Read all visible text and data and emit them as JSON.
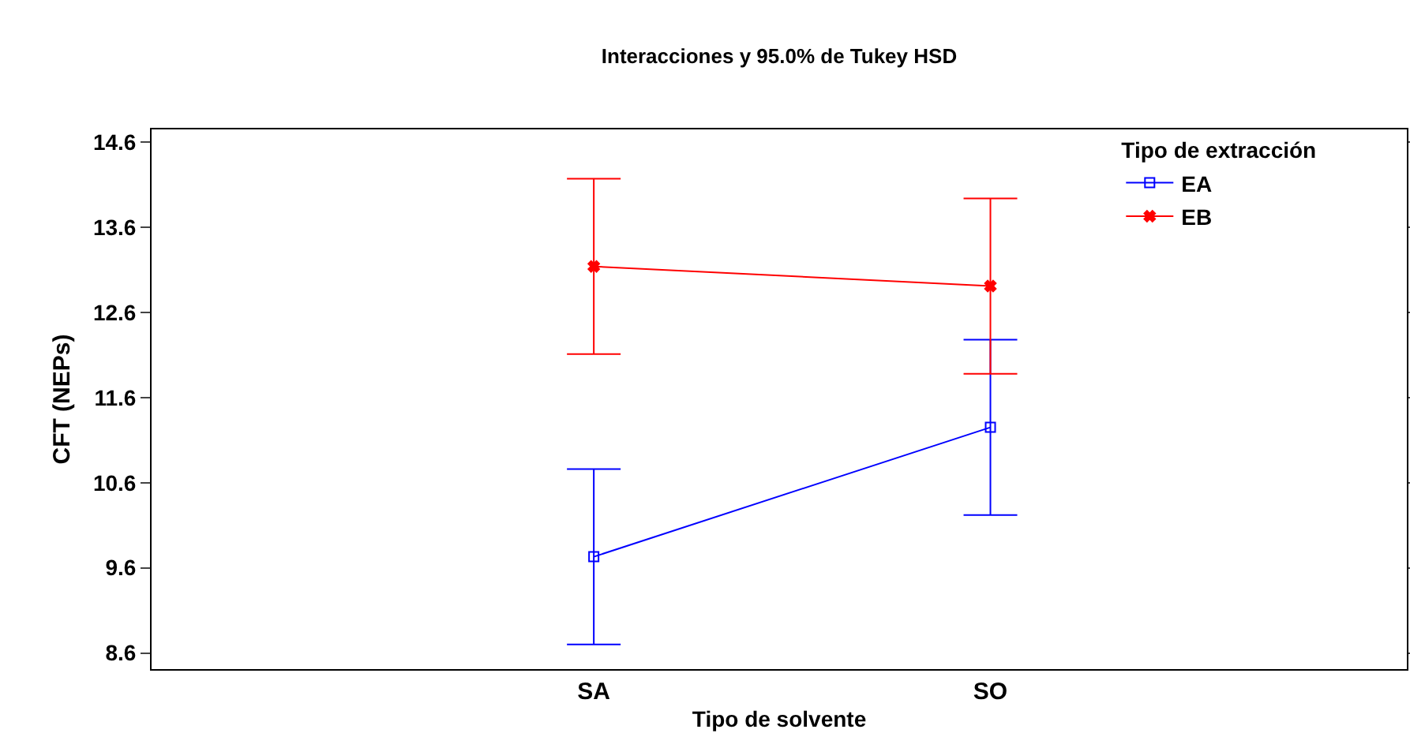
{
  "chart_data": {
    "type": "line",
    "title": "Interacciones y 95.0% de Tukey HSD",
    "xlabel": "Tipo de solvente",
    "ylabel": "CFT (NEPs)",
    "legend_title": "Tipo de extracción",
    "categories": [
      "SA",
      "SO"
    ],
    "series": [
      {
        "name": "EA",
        "color": "#0000ff",
        "marker": "square",
        "values": [
          9.73,
          11.25
        ],
        "errors": [
          1.03,
          1.03
        ]
      },
      {
        "name": "EB",
        "color": "#ff0000",
        "marker": "cross",
        "values": [
          13.14,
          12.91
        ],
        "errors": [
          1.03,
          1.03
        ]
      }
    ],
    "ylim": [
      8.41,
      14.75
    ],
    "yticks": [
      {
        "value": 8.6,
        "label": "8.6"
      },
      {
        "value": 9.6,
        "label": "9.6"
      },
      {
        "value": 10.6,
        "label": "10.6"
      },
      {
        "value": 11.6,
        "label": "11.6"
      },
      {
        "value": 12.6,
        "label": "12.6"
      },
      {
        "value": 13.6,
        "label": "13.6"
      },
      {
        "value": 14.6,
        "label": "14.6"
      }
    ],
    "grid": false,
    "legend": "top right",
    "line_style": "solid"
  }
}
